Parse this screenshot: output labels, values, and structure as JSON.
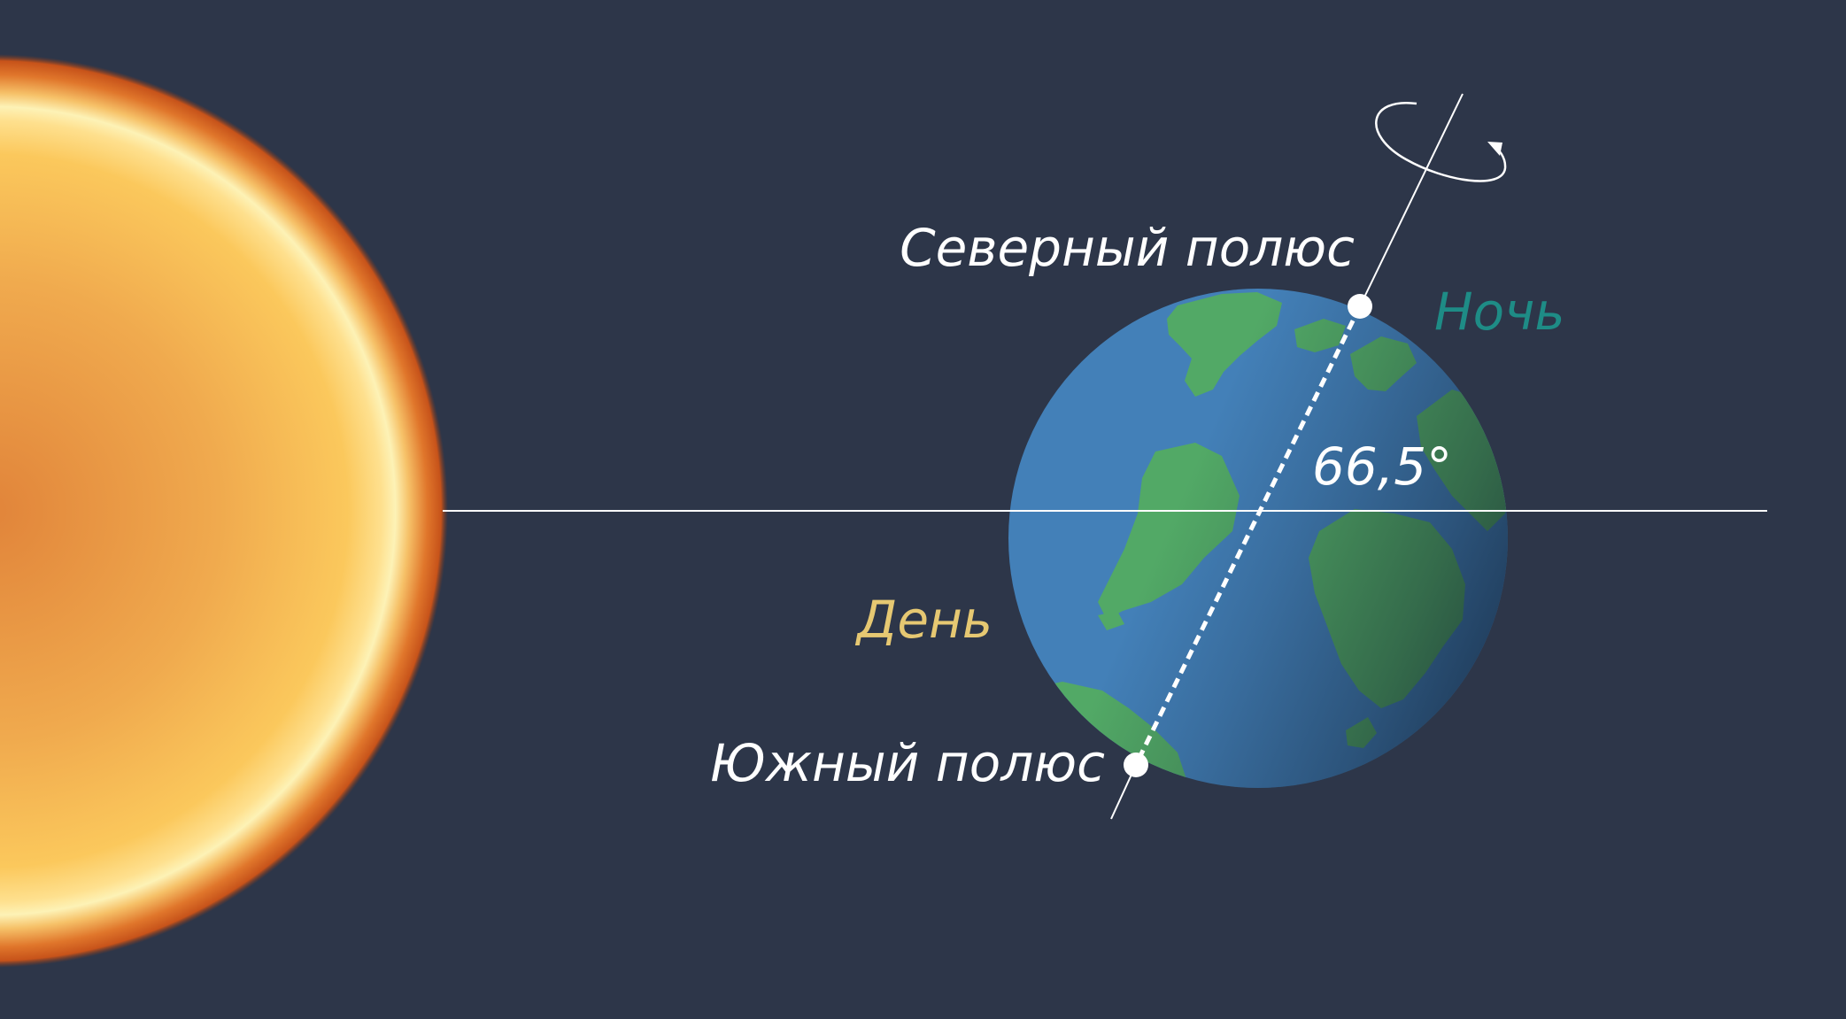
{
  "labels": {
    "north_pole": "Северный полюс",
    "south_pole": "Южный полюс",
    "night": "Ночь",
    "day": "День",
    "tilt_angle": "66,5°"
  },
  "colors": {
    "background": "#2d3649",
    "ocean": "#4380b8",
    "land": "#52a966",
    "night_text": "#1e8c86",
    "day_text": "#e6c872",
    "line": "#ffffff",
    "sun_core": "#e1843a",
    "sun_mid": "#f6b455",
    "sun_glow": "#fdf2b6",
    "sun_rim": "#c7531a"
  }
}
